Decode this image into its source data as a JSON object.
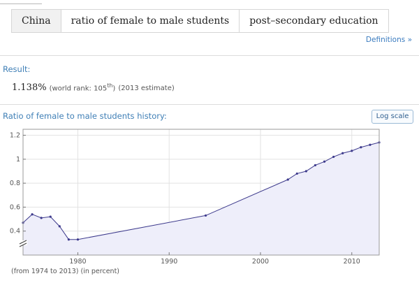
{
  "query": {
    "entity": "China",
    "property": "ratio of female to male students",
    "qualifier": "post–secondary education"
  },
  "definitions_link": "Definitions »",
  "result": {
    "heading": "Result:",
    "value": "1.138%",
    "rank_prefix": "(world rank: 105",
    "rank_suffix": "th",
    "rank_close": ")",
    "estimate": "(2013 estimate)"
  },
  "history": {
    "heading": "Ratio of female to male students history:",
    "log_scale_button": "Log scale",
    "footnote_range": "(from 1974 to 2013)",
    "footnote_unit": "(in percent)"
  },
  "colors": {
    "line": "#3d3a8c",
    "fill": "#eeeefa",
    "link": "#3a7bbf"
  },
  "chart_data": {
    "type": "area",
    "title": "",
    "xlabel": "",
    "ylabel": "",
    "x": [
      1974,
      1975,
      1976,
      1977,
      1978,
      1979,
      1980,
      1994,
      2003,
      2004,
      2005,
      2006,
      2007,
      2008,
      2009,
      2010,
      2011,
      2012,
      2013
    ],
    "y": [
      0.47,
      0.54,
      0.51,
      0.52,
      0.44,
      0.33,
      0.33,
      0.53,
      0.83,
      0.88,
      0.9,
      0.95,
      0.98,
      1.02,
      1.05,
      1.07,
      1.1,
      1.12,
      1.14
    ],
    "xlim": [
      1974,
      2013
    ],
    "ylim": [
      0.2,
      1.25
    ],
    "xticks": [
      1980,
      1990,
      2000,
      2010
    ],
    "yticks": [
      0.4,
      0.6,
      0.8,
      1,
      1.2
    ],
    "xtick_labels": [
      "1980",
      "1990",
      "2000",
      "2010"
    ],
    "ytick_labels": [
      "0.4",
      "0.6",
      "0.8",
      "1",
      "1.2"
    ],
    "y_axis_break": true,
    "grid": true
  }
}
